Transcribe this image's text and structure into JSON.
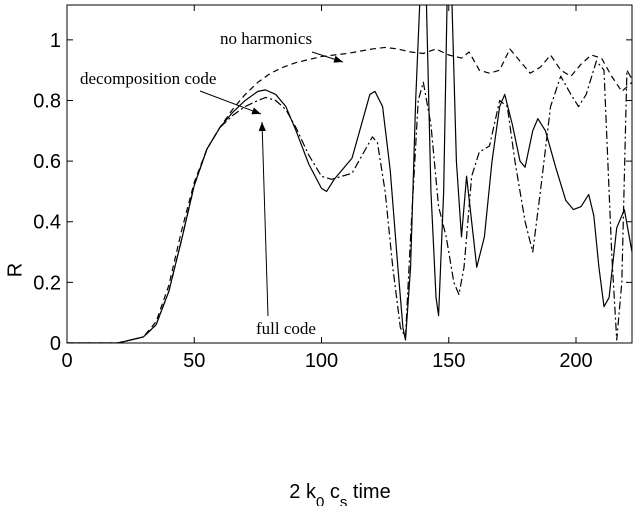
{
  "chart_data": {
    "type": "line",
    "ylabel": "R",
    "xlabel": [
      {
        "text": "2 k"
      },
      {
        "text": "0",
        "sub": true
      },
      {
        "text": " c"
      },
      {
        "text": "s",
        "sub": true
      },
      {
        "text": " time"
      }
    ],
    "xlim": [
      0,
      222
    ],
    "ylim": [
      0,
      1.115
    ],
    "xticks": [
      0,
      50,
      100,
      150,
      200
    ],
    "yticks": [
      0,
      0.2,
      0.4,
      0.6,
      0.8,
      1
    ],
    "grid": false,
    "series": [
      {
        "name": "decomposition code",
        "color": "#000000",
        "style": "solid",
        "x": [
          0,
          20,
          30,
          35,
          40,
          45,
          50,
          55,
          60,
          65,
          70,
          75,
          78,
          82,
          86,
          90,
          95,
          100,
          102,
          105,
          108,
          112,
          116,
          119,
          121,
          124,
          127,
          130,
          132,
          133,
          135,
          137,
          139,
          141,
          143,
          145,
          146,
          148,
          149.5,
          151,
          153,
          155,
          157,
          159,
          161,
          164,
          167,
          170,
          172,
          175,
          178,
          180,
          183,
          185,
          188,
          192,
          196,
          199,
          202,
          205,
          207,
          209,
          211,
          213,
          216,
          219,
          222
        ],
        "values": [
          0,
          0,
          0.02,
          0.06,
          0.17,
          0.34,
          0.52,
          0.64,
          0.71,
          0.76,
          0.8,
          0.83,
          0.835,
          0.82,
          0.78,
          0.7,
          0.59,
          0.51,
          0.5,
          0.54,
          0.57,
          0.61,
          0.73,
          0.82,
          0.83,
          0.78,
          0.57,
          0.25,
          0.05,
          0.01,
          0.25,
          0.8,
          1.2,
          1.2,
          0.5,
          0.15,
          0.09,
          0.5,
          1.2,
          1.2,
          0.6,
          0.35,
          0.55,
          0.4,
          0.25,
          0.35,
          0.6,
          0.78,
          0.82,
          0.72,
          0.6,
          0.58,
          0.7,
          0.74,
          0.7,
          0.58,
          0.47,
          0.44,
          0.45,
          0.49,
          0.42,
          0.25,
          0.12,
          0.15,
          0.38,
          0.44,
          0.3
        ]
      },
      {
        "name": "no harmonics",
        "color": "#000000",
        "style": "dashed",
        "x": [
          0,
          20,
          30,
          35,
          40,
          45,
          50,
          55,
          60,
          65,
          70,
          75,
          80,
          85,
          90,
          95,
          100,
          110,
          120,
          125,
          130,
          135,
          140,
          145,
          150,
          155,
          158,
          162,
          166,
          170,
          174,
          178,
          182,
          186,
          190,
          194,
          198,
          202,
          206,
          210,
          214,
          218,
          222
        ],
        "values": [
          0,
          0,
          0.02,
          0.07,
          0.19,
          0.37,
          0.53,
          0.64,
          0.71,
          0.77,
          0.82,
          0.86,
          0.89,
          0.91,
          0.925,
          0.935,
          0.945,
          0.955,
          0.97,
          0.975,
          0.97,
          0.96,
          0.955,
          0.97,
          0.95,
          0.94,
          0.96,
          0.9,
          0.89,
          0.9,
          0.97,
          0.93,
          0.89,
          0.91,
          0.95,
          0.9,
          0.88,
          0.92,
          0.95,
          0.94,
          0.88,
          0.83,
          0.86
        ]
      },
      {
        "name": "full code",
        "color": "#000000",
        "style": "dashdot",
        "x": [
          0,
          20,
          30,
          35,
          40,
          45,
          50,
          55,
          60,
          65,
          70,
          75,
          78,
          82,
          86,
          90,
          95,
          100,
          104,
          108,
          112,
          116,
          120,
          122,
          125,
          128,
          131,
          133,
          135,
          138,
          140,
          143,
          146,
          149,
          152,
          154,
          156,
          159,
          162,
          166,
          170,
          173,
          176,
          180,
          183,
          186,
          190,
          194,
          198,
          201,
          204,
          208,
          211,
          214,
          216,
          218,
          220,
          222
        ],
        "values": [
          0,
          0,
          0.02,
          0.06,
          0.17,
          0.34,
          0.52,
          0.64,
          0.71,
          0.75,
          0.78,
          0.8,
          0.81,
          0.8,
          0.77,
          0.71,
          0.62,
          0.55,
          0.54,
          0.55,
          0.56,
          0.62,
          0.68,
          0.66,
          0.5,
          0.25,
          0.05,
          0.02,
          0.35,
          0.8,
          0.86,
          0.72,
          0.45,
          0.35,
          0.2,
          0.16,
          0.25,
          0.55,
          0.63,
          0.65,
          0.8,
          0.78,
          0.6,
          0.4,
          0.3,
          0.5,
          0.78,
          0.88,
          0.82,
          0.78,
          0.82,
          0.93,
          0.9,
          0.3,
          0.01,
          0.2,
          0.9,
          0.87
        ]
      }
    ]
  }
}
